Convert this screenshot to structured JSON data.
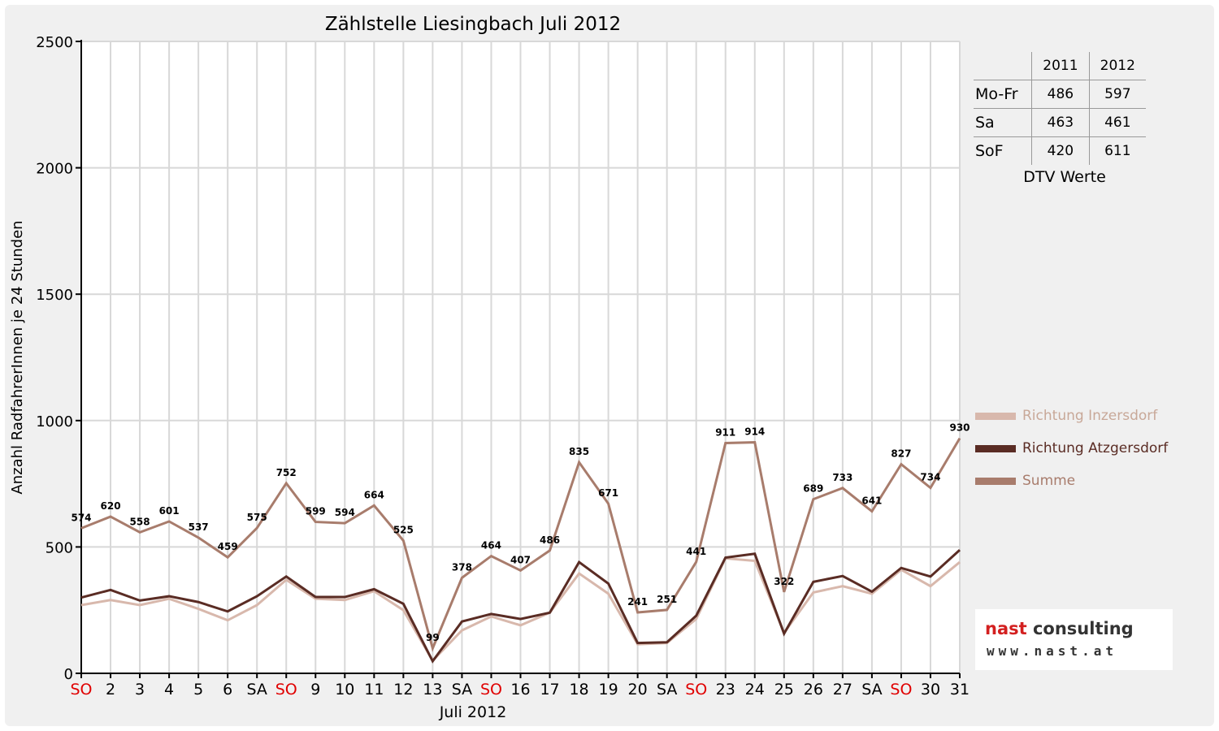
{
  "chart_data": {
    "type": "line",
    "title": "Zählstelle Liesingbach Juli 2012",
    "xlabel": "Juli 2012",
    "ylabel": "Anzahl RadfahrerInnen je 24 Stunden",
    "ylim": [
      0,
      2500
    ],
    "yticks": [
      0,
      500,
      1000,
      1500,
      2000,
      2500
    ],
    "grid": true,
    "legend_position": "right",
    "categories": [
      "SO",
      "2",
      "3",
      "4",
      "5",
      "6",
      "SA",
      "SO",
      "9",
      "10",
      "11",
      "12",
      "13",
      "SA",
      "SO",
      "16",
      "17",
      "18",
      "19",
      "20",
      "SA",
      "SO",
      "23",
      "24",
      "25",
      "26",
      "27",
      "SA",
      "SO",
      "30",
      "31"
    ],
    "sunday_color": "#e00000",
    "sunday_indices": [
      0,
      7,
      14,
      21,
      28
    ],
    "series": [
      {
        "name": "Richtung Inzersdorf",
        "color": "#d8b8ac",
        "values": [
          270,
          290,
          270,
          295,
          255,
          210,
          270,
          370,
          295,
          290,
          325,
          250,
          50,
          170,
          225,
          190,
          240,
          395,
          315,
          115,
          120,
          215,
          455,
          445,
          160,
          320,
          345,
          315,
          410,
          345,
          440
        ]
      },
      {
        "name": "Richtung Atzgersdorf",
        "color": "#5a2c24",
        "values": [
          300,
          330,
          288,
          305,
          282,
          245,
          305,
          383,
          302,
          302,
          333,
          275,
          48,
          205,
          235,
          215,
          240,
          440,
          355,
          120,
          123,
          228,
          458,
          473,
          157,
          362,
          385,
          323,
          417,
          383,
          488
        ]
      },
      {
        "name": "Summe",
        "color": "#a87c6c",
        "values": [
          574,
          620,
          558,
          601,
          537,
          459,
          575,
          752,
          599,
          594,
          664,
          525,
          99,
          378,
          464,
          407,
          486,
          835,
          671,
          241,
          251,
          441,
          911,
          914,
          322,
          689,
          733,
          641,
          827,
          734,
          930
        ]
      }
    ]
  },
  "dtv_table": {
    "years": [
      "2011",
      "2012"
    ],
    "rows": [
      {
        "label": "Mo-Fr",
        "y2011": "486",
        "y2012": "597"
      },
      {
        "label": "Sa",
        "y2011": "463",
        "y2012": "461"
      },
      {
        "label": "SoF",
        "y2011": "420",
        "y2012": "611"
      }
    ],
    "caption": "DTV Werte"
  },
  "logo": {
    "name_part1": "nast",
    "name_part2": " consulting",
    "url": "www.nast.at"
  }
}
